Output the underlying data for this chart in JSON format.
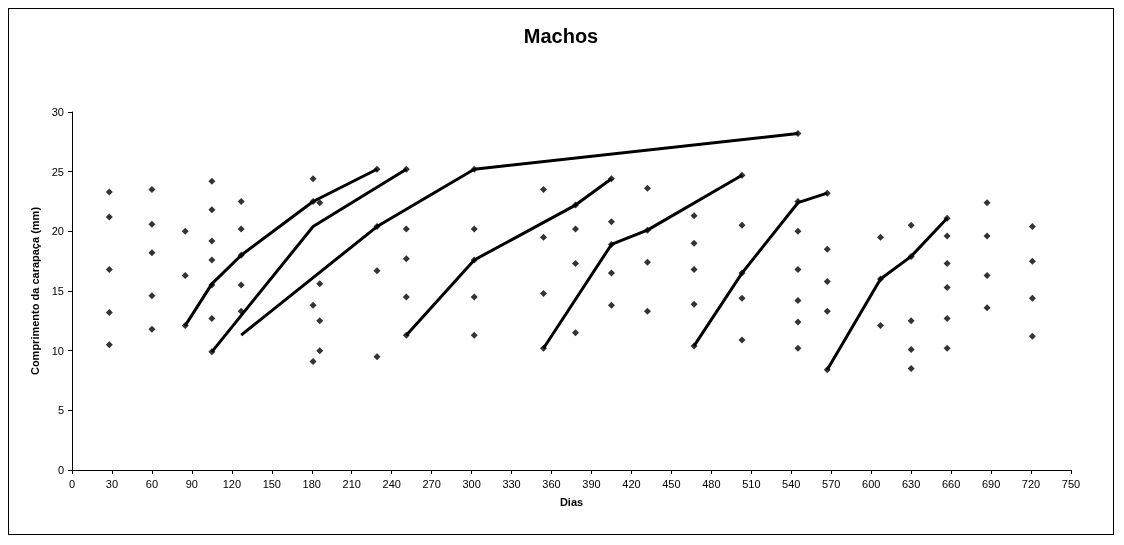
{
  "chart_data": {
    "type": "scatter",
    "title": "Machos",
    "xlabel": "Dias",
    "ylabel": "Comprimento da carapaça (mm)",
    "xlim": [
      0,
      750
    ],
    "xticks": [
      0,
      30,
      60,
      90,
      120,
      150,
      180,
      210,
      240,
      270,
      300,
      330,
      360,
      390,
      420,
      450,
      480,
      510,
      540,
      570,
      600,
      630,
      660,
      690,
      720,
      750
    ],
    "ylim": [
      0,
      30
    ],
    "yticks": [
      0,
      5,
      10,
      15,
      20,
      25,
      30
    ],
    "grid": false,
    "marker": "diamond",
    "series": [
      {
        "color": "#000000",
        "x": [
          28,
          28,
          28,
          28,
          28,
          60,
          60,
          60,
          60,
          60,
          85,
          85,
          85,
          105,
          105,
          105,
          105,
          105,
          105,
          105,
          127,
          127,
          127,
          127,
          127,
          181,
          181,
          181,
          181,
          186,
          186,
          186,
          186,
          229,
          229,
          229,
          229,
          251,
          251,
          251,
          251,
          251,
          302,
          302,
          302,
          302,
          302,
          354,
          354,
          354,
          354,
          378,
          378,
          378,
          378,
          405,
          405,
          405,
          405,
          405,
          432,
          432,
          432,
          432,
          467,
          467,
          467,
          467,
          467,
          503,
          503,
          503,
          503,
          503,
          545,
          545,
          545,
          545,
          545,
          545,
          545,
          567,
          567,
          567,
          567,
          567,
          607,
          607,
          607,
          630,
          630,
          630,
          630,
          630,
          657,
          657,
          657,
          657,
          657,
          657,
          687,
          687,
          687,
          687,
          721,
          721,
          721,
          721
        ],
        "values": [
          23.3,
          21.2,
          16.8,
          13.2,
          10.5,
          23.5,
          20.6,
          18.2,
          14.6,
          11.8,
          20.0,
          16.3,
          12.1,
          24.2,
          21.8,
          19.2,
          17.6,
          15.5,
          12.7,
          9.9,
          22.5,
          20.2,
          18.0,
          15.5,
          13.3,
          24.4,
          22.5,
          13.8,
          9.1,
          22.4,
          15.6,
          12.5,
          10.0,
          25.2,
          20.4,
          16.7,
          9.5,
          25.2,
          20.2,
          17.7,
          14.5,
          11.3,
          25.2,
          20.2,
          17.6,
          14.5,
          11.3,
          23.5,
          19.5,
          14.8,
          10.2,
          22.2,
          20.2,
          17.3,
          11.5,
          24.4,
          20.8,
          18.9,
          16.5,
          13.8,
          23.6,
          20.1,
          17.4,
          13.3,
          21.3,
          19.0,
          16.8,
          13.9,
          10.4,
          24.7,
          20.5,
          16.5,
          14.4,
          10.9,
          28.2,
          22.5,
          20.0,
          16.8,
          14.2,
          12.4,
          10.2,
          23.2,
          18.5,
          15.8,
          13.3,
          8.4,
          19.5,
          16.0,
          12.1,
          20.5,
          17.9,
          12.5,
          10.1,
          8.5,
          21.1,
          19.6,
          17.3,
          15.3,
          12.7,
          10.2,
          22.4,
          19.6,
          16.3,
          13.6,
          20.4,
          17.5,
          14.4,
          11.2
        ]
      },
      {
        "type": "line",
        "color": "#000000",
        "marker": "none",
        "x": [
          85,
          105,
          127,
          181,
          229
        ],
        "values": [
          12.1,
          15.6,
          18.0,
          22.5,
          25.2
        ]
      },
      {
        "type": "line",
        "color": "#000000",
        "marker": "none",
        "x": [
          105,
          181,
          251
        ],
        "values": [
          9.9,
          20.4,
          25.2
        ]
      },
      {
        "type": "line",
        "color": "#000000",
        "marker": "none",
        "x": [
          127,
          229,
          302,
          545
        ],
        "values": [
          11.3,
          20.4,
          25.2,
          28.2
        ]
      },
      {
        "type": "line",
        "color": "#000000",
        "marker": "none",
        "x": [
          251,
          302,
          378,
          405
        ],
        "values": [
          11.3,
          17.6,
          22.2,
          24.4
        ]
      },
      {
        "type": "line",
        "color": "#000000",
        "marker": "none",
        "x": [
          354,
          405,
          432,
          503
        ],
        "values": [
          10.2,
          18.9,
          20.1,
          24.7
        ]
      },
      {
        "type": "line",
        "color": "#000000",
        "marker": "none",
        "x": [
          467,
          503,
          545,
          567
        ],
        "values": [
          10.4,
          16.5,
          22.4,
          23.2
        ]
      },
      {
        "type": "line",
        "color": "#000000",
        "marker": "none",
        "x": [
          567,
          607,
          630,
          657
        ],
        "values": [
          8.4,
          16.0,
          17.9,
          21.1
        ]
      }
    ]
  }
}
